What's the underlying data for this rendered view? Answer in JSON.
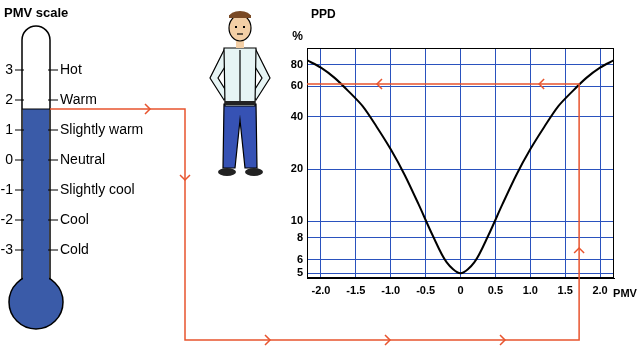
{
  "chart_data": {
    "type": "line",
    "ylabel": "PPD",
    "ylabel_unit": "%",
    "xlabel": "PMV",
    "x": [
      -2.2,
      -2.0,
      -1.8,
      -1.6,
      -1.4,
      -1.2,
      -1.0,
      -0.8,
      -0.6,
      -0.4,
      -0.2,
      0,
      0.2,
      0.4,
      0.6,
      0.8,
      1.0,
      1.2,
      1.4,
      1.6,
      1.8,
      2.0,
      2.2
    ],
    "values": [
      85,
      77,
      67,
      56,
      46,
      35,
      26,
      18.5,
      12.5,
      8.3,
      5.8,
      5,
      5.8,
      8.3,
      12.5,
      18.5,
      26,
      35,
      46,
      56,
      67,
      77,
      85
    ],
    "color": "#000000",
    "log": "y",
    "xlim": [
      -2.2,
      2.2
    ],
    "xticks": [
      {
        "value": -2,
        "label": "-2.0"
      },
      {
        "value": -1.5,
        "label": "-1.5"
      },
      {
        "value": -1,
        "label": "-1.0"
      },
      {
        "value": -0.5,
        "label": "-0.5"
      },
      0,
      0.5,
      {
        "value": 1,
        "label": "1.0"
      },
      1.5,
      {
        "value": 2,
        "label": "2.0"
      }
    ],
    "ylim": [
      4.7,
      100
    ],
    "yticks": [
      5,
      6,
      8,
      10,
      20,
      40,
      60,
      80
    ],
    "grid": true,
    "annotation": {
      "pmv": 1.7,
      "ppd": 62
    }
  },
  "pmv_scale": {
    "title": "PMV scale",
    "levels": [
      {
        "value": 3,
        "label": "Hot"
      },
      {
        "value": 2,
        "label": "Warm"
      },
      {
        "value": 1,
        "label": "Slightly warm"
      },
      {
        "value": 0,
        "label": "Neutral"
      },
      {
        "value": -1,
        "label": "Slightly cool"
      },
      {
        "value": -2,
        "label": "Cool"
      },
      {
        "value": -3,
        "label": "Cold"
      }
    ]
  }
}
